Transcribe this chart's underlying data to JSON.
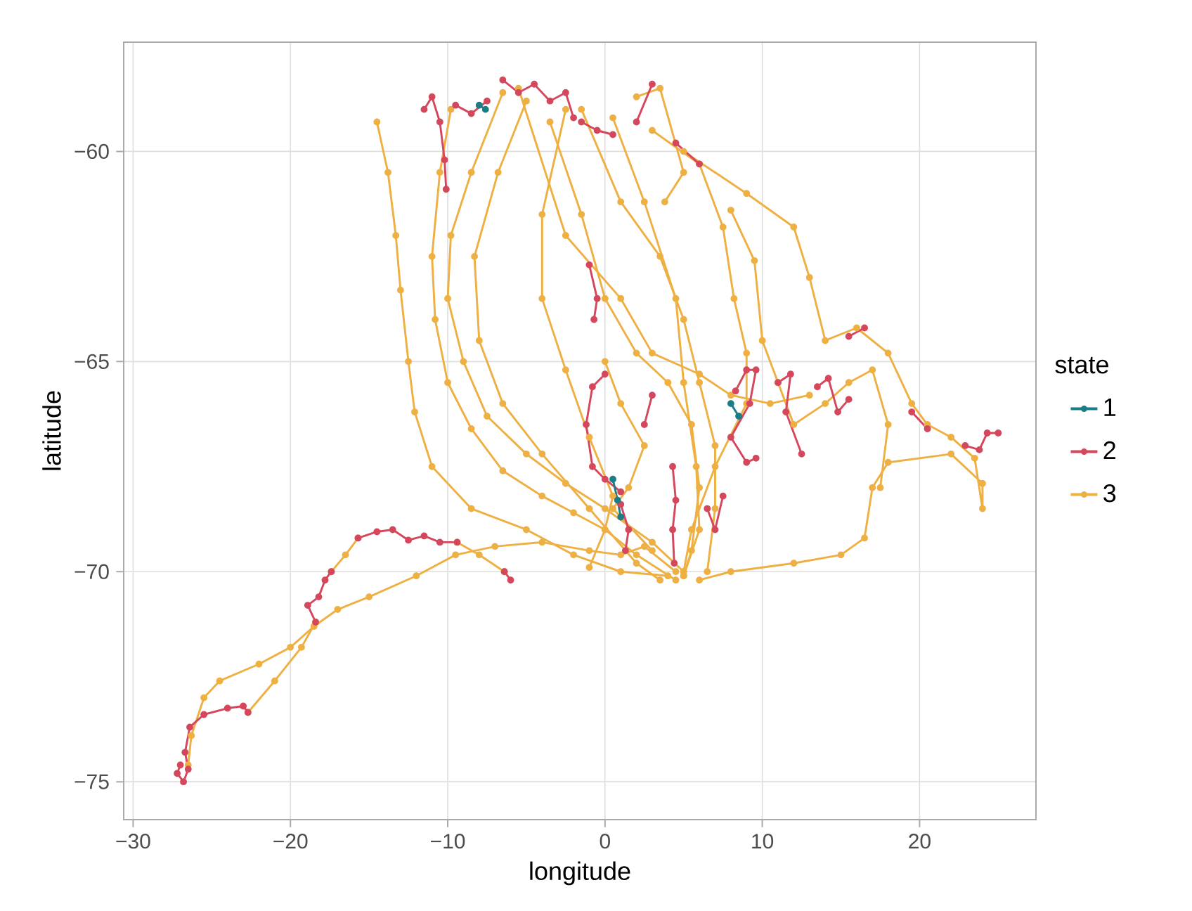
{
  "chart_data": {
    "type": "line",
    "xlabel": "longitude",
    "ylabel": "latitude",
    "legend_title": "state",
    "legend": "right",
    "grid": true,
    "marker": "circle",
    "line_style": "solid",
    "xlim": [
      -30.6,
      27.4
    ],
    "ylim": [
      -75.9,
      -57.4
    ],
    "xticks": [
      {
        "value": -30,
        "label": "−30"
      },
      {
        "value": -20,
        "label": "−20"
      },
      {
        "value": -10,
        "label": "−10"
      },
      0,
      10,
      20
    ],
    "yticks": [
      {
        "value": -75,
        "label": "−75"
      },
      {
        "value": -70,
        "label": "−70"
      },
      {
        "value": -65,
        "label": "−65"
      },
      {
        "value": -60,
        "label": "−60"
      }
    ],
    "series": [
      {
        "name": "3",
        "color": "#efb043",
        "x": [
          -26.5,
          -26.3,
          -25.5,
          -24.5,
          -22,
          -20,
          -18.5,
          -17,
          -15,
          -12,
          -9.5,
          -7,
          -4,
          -1,
          1,
          2.5,
          4.5,
          null,
          -22.7,
          -21,
          -19.3,
          -18.4,
          null,
          -17.4,
          -16.5,
          -15.7,
          null,
          -9.4,
          -8,
          -6.4,
          null,
          -14.5,
          -13.8,
          -13.3,
          -13.0,
          -12.5,
          -12.1,
          -11,
          -8.5,
          -5,
          -2,
          1,
          4,
          null,
          -9.8,
          -10.5,
          -11.0,
          -10.8,
          -10,
          -8.5,
          -6.5,
          -4,
          -2,
          0,
          2,
          4.5,
          null,
          -6.5,
          -8.5,
          -9.8,
          -10,
          -9,
          -7.5,
          -5,
          -2.5,
          0,
          3,
          5,
          null,
          -5,
          -6.8,
          -8.3,
          -8,
          -6.5,
          -4,
          -1,
          2,
          3.5,
          null,
          -2.5,
          -4,
          -4,
          -2.5,
          -1,
          0.5,
          0,
          -1,
          null,
          -3.5,
          -1.5,
          0,
          2,
          4,
          5.5,
          6,
          5.5,
          5,
          null,
          -1.5,
          1,
          3.5,
          5,
          6,
          7,
          7,
          6.5,
          null,
          0.5,
          2.5,
          4.5,
          5,
          5.8,
          6,
          5,
          null,
          5,
          9,
          12,
          13,
          14,
          16,
          18,
          19.5,
          20.5,
          22,
          23.5,
          24,
          24,
          22,
          18,
          17,
          16.5,
          15,
          12,
          8,
          6,
          null,
          3,
          6,
          7.5,
          8.2,
          9,
          9,
          7,
          5.5,
          5,
          null,
          8,
          9.5,
          10,
          11,
          12,
          14,
          15.5,
          17,
          18,
          17.5,
          null,
          2,
          3.5,
          5,
          3.8,
          null,
          -5.5,
          -2.5,
          1,
          3,
          6,
          8,
          10.5,
          13,
          null,
          0,
          1,
          2.5,
          1.5,
          0.5,
          3
        ],
        "values": [
          -74.6,
          -73.9,
          -73.0,
          -72.6,
          -72.2,
          -71.8,
          -71.3,
          -70.9,
          -70.6,
          -70.1,
          -69.6,
          -69.4,
          -69.3,
          -69.5,
          -69.6,
          -69.4,
          -70.0,
          null,
          -73.35,
          -72.6,
          -71.8,
          -71.2,
          null,
          -70.0,
          -69.6,
          -69.2,
          null,
          -69.3,
          -69.6,
          -70.0,
          null,
          -59.3,
          -60.5,
          -62,
          -63.3,
          -65,
          -66.2,
          -67.5,
          -68.5,
          -69,
          -69.6,
          -70,
          -70.1,
          null,
          -59,
          -60.5,
          -62.5,
          -64,
          -65.5,
          -66.6,
          -67.6,
          -68.2,
          -68.6,
          -69,
          -69.6,
          -70.2,
          null,
          -58.6,
          -60.5,
          -62,
          -63.5,
          -65,
          -66.3,
          -67.2,
          -67.9,
          -68.5,
          -69.3,
          -70,
          null,
          -58.8,
          -60.5,
          -62.5,
          -64.5,
          -66,
          -67.2,
          -68.5,
          -69.8,
          -70.2,
          null,
          -59,
          -61.5,
          -63.5,
          -65.2,
          -66.8,
          -68.2,
          -69,
          -69.9,
          null,
          -59.3,
          -61.5,
          -63.5,
          -64.8,
          -65.5,
          -66.5,
          -68,
          -69.5,
          -70.1,
          null,
          -59,
          -61.2,
          -62.5,
          -64,
          -65.5,
          -67,
          -68.5,
          -70,
          null,
          -59.2,
          -61.2,
          -63.5,
          -65.5,
          -67.5,
          -69,
          -70.1,
          null,
          -60,
          -61,
          -61.8,
          -63,
          -64.5,
          -64.2,
          -64.8,
          -66,
          -66.5,
          -66.8,
          -67.3,
          -68.5,
          -67.9,
          -67.2,
          -67.4,
          -68,
          -69.2,
          -69.6,
          -69.8,
          -70,
          -70.2,
          null,
          -59.5,
          -60.3,
          -61.8,
          -63.5,
          -64.8,
          -66,
          -67.5,
          -69,
          -70,
          null,
          -61.4,
          -62.6,
          -64.5,
          -65.5,
          -66.5,
          -66,
          -65.5,
          -65.2,
          -66.5,
          -68,
          null,
          -58.7,
          -58.5,
          -60.5,
          -61.2,
          null,
          -58.5,
          -62,
          -63.5,
          -64.8,
          -65.3,
          -65.8,
          -66,
          -65.8,
          null,
          -65,
          -66,
          -67,
          -68,
          -68.5,
          -69.5
        ]
      },
      {
        "name": "2",
        "color": "#d5475c",
        "x": [
          -27,
          -27.2,
          -26.8,
          -26.5,
          -26.7,
          -26.4,
          -25.5,
          -24,
          -23,
          -22.7,
          null,
          -18.4,
          -18.9,
          -18.2,
          -17.8,
          -17.4,
          null,
          -15.7,
          -14.5,
          -13.5,
          -12.5,
          -11.5,
          -10.5,
          -9.4,
          null,
          -6.4,
          -6.0,
          null,
          -11.5,
          -11,
          -10.5,
          -10.2,
          -10.1,
          null,
          -9.5,
          -8.5,
          -7.5,
          null,
          -6.5,
          -5.5,
          -4.5,
          -3.5,
          -2.5,
          -2,
          null,
          -1.5,
          -0.5,
          0.5,
          null,
          2,
          3,
          null,
          4.5,
          6,
          null,
          -1.0,
          -0.5,
          -0.7,
          null,
          0,
          -0.8,
          -1.2,
          -0.8,
          0,
          1,
          null,
          1.0,
          1.5,
          1.3,
          null,
          4.3,
          4.5,
          4.3,
          4.4,
          null,
          6.5,
          7,
          7.5,
          null,
          8.3,
          9,
          9.6,
          9.2,
          8,
          9,
          9.6,
          null,
          11,
          11.8,
          11.5,
          12.5,
          null,
          13.5,
          14.2,
          14.8,
          15.5,
          null,
          19.5,
          20.5,
          null,
          22.9,
          23.8,
          24.3,
          25,
          null,
          15.5,
          16.5,
          null,
          2.5,
          3
        ],
        "values": [
          -74.6,
          -74.8,
          -75.0,
          -74.7,
          -74.3,
          -73.7,
          -73.4,
          -73.25,
          -73.2,
          -73.35,
          null,
          -71.2,
          -70.8,
          -70.6,
          -70.2,
          -70.0,
          null,
          -69.2,
          -69.05,
          -69.0,
          -69.25,
          -69.15,
          -69.3,
          -69.3,
          null,
          -70.0,
          -70.2,
          null,
          -59,
          -58.7,
          -59.3,
          -60.2,
          -60.9,
          null,
          -58.9,
          -59.1,
          -58.8,
          null,
          -58.3,
          -58.6,
          -58.4,
          -58.8,
          -58.6,
          -59.2,
          null,
          -59.3,
          -59.5,
          -59.6,
          null,
          -59.3,
          -58.4,
          null,
          -59.8,
          -60.3,
          null,
          -62.7,
          -63.5,
          -64.0,
          null,
          -65.3,
          -65.6,
          -66.5,
          -67.5,
          -67.8,
          -68.1,
          null,
          -68.4,
          -69.0,
          -69.5,
          null,
          -67.5,
          -68.3,
          -69,
          -69.8,
          null,
          -68.5,
          -69.0,
          -68.2,
          null,
          -65.7,
          -65.2,
          -65.2,
          -66,
          -66.8,
          -67.4,
          -67.3,
          null,
          -65.5,
          -65.3,
          -66.2,
          -67.2,
          null,
          -65.6,
          -65.4,
          -66.2,
          -65.9,
          null,
          -66.2,
          -66.6,
          null,
          -67.0,
          -67.1,
          -66.7,
          -66.7,
          null,
          -64.4,
          -64.2,
          null,
          -66.5,
          -65.8
        ]
      },
      {
        "name": "1",
        "color": "#1b7d87",
        "x": [
          -8,
          -7.6,
          null,
          8,
          8.5,
          null,
          0.5,
          0.8,
          1.0
        ],
        "values": [
          -58.9,
          -59.0,
          null,
          -66.0,
          -66.3,
          null,
          -67.8,
          -68.3,
          -68.7
        ]
      }
    ]
  }
}
